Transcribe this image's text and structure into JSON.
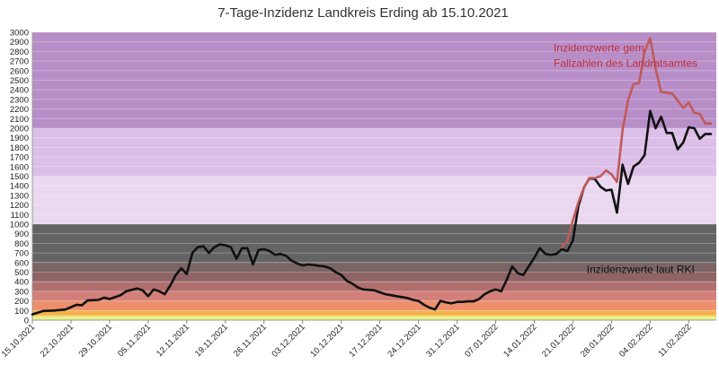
{
  "chart_data": {
    "type": "line",
    "title": "7-Tage-Inzidenz Landkreis Erding ab 15.10.2021",
    "xlabel": "",
    "ylabel": "",
    "ylim": [
      0,
      3000
    ],
    "ytick_step": 100,
    "y_ticks": [
      "0",
      "100",
      "200",
      "300",
      "400",
      "500",
      "600",
      "700",
      "800",
      "900",
      "1000",
      "1100",
      "1200",
      "1300",
      "1400",
      "1500",
      "1600",
      "1700",
      "1800",
      "1900",
      "2000",
      "2100",
      "2200",
      "2300",
      "2400",
      "2500",
      "2600",
      "2700",
      "2800",
      "2900",
      "3000"
    ],
    "x_range": [
      0,
      124
    ],
    "x_ticks": [
      {
        "label": "15.10.2021",
        "day": 0
      },
      {
        "label": "22.10.2021",
        "day": 7
      },
      {
        "label": "29.10.2021",
        "day": 14
      },
      {
        "label": "05.11.2021",
        "day": 21
      },
      {
        "label": "12.11.2021",
        "day": 28
      },
      {
        "label": "19.11.2021",
        "day": 35
      },
      {
        "label": "26.11.2021",
        "day": 42
      },
      {
        "label": "03.12.2021",
        "day": 49
      },
      {
        "label": "10.12.2021",
        "day": 56
      },
      {
        "label": "17.12.2021",
        "day": 63
      },
      {
        "label": "24.12.2021",
        "day": 70
      },
      {
        "label": "31.12.2021",
        "day": 77
      },
      {
        "label": "07.01.2022",
        "day": 84
      },
      {
        "label": "14.01.2022",
        "day": 91
      },
      {
        "label": "21.01.2022",
        "day": 98
      },
      {
        "label": "28.01.2022",
        "day": 105
      },
      {
        "label": "04.02.2022",
        "day": 112
      },
      {
        "label": "11.02.2022",
        "day": 119
      }
    ],
    "bands": [
      {
        "from": 0,
        "to": 35,
        "color": "#e6f58c"
      },
      {
        "from": 35,
        "to": 50,
        "color": "#f7d76a"
      },
      {
        "from": 50,
        "to": 100,
        "color": "#f4b24a"
      },
      {
        "from": 100,
        "to": 200,
        "color": "#ee8f6c"
      },
      {
        "from": 200,
        "to": 300,
        "color": "#d4807a"
      },
      {
        "from": 300,
        "to": 400,
        "color": "#b06f6e"
      },
      {
        "from": 400,
        "to": 500,
        "color": "#8f6464"
      },
      {
        "from": 500,
        "to": 600,
        "color": "#7a6464"
      },
      {
        "from": 600,
        "to": 1000,
        "color": "#646464"
      },
      {
        "from": 1000,
        "to": 1500,
        "color": "#ead7f0"
      },
      {
        "from": 1500,
        "to": 2000,
        "color": "#dcbfe8"
      },
      {
        "from": 2000,
        "to": 3000,
        "color": "#b88ec8"
      }
    ],
    "series": [
      {
        "name": "Inzidenzwerte laut RKI",
        "color": "#111111",
        "points": [
          [
            0,
            60
          ],
          [
            2,
            95
          ],
          [
            4,
            100
          ],
          [
            6,
            110
          ],
          [
            8,
            160
          ],
          [
            9,
            155
          ],
          [
            10,
            205
          ],
          [
            12,
            210
          ],
          [
            13,
            235
          ],
          [
            14,
            220
          ],
          [
            16,
            260
          ],
          [
            17,
            300
          ],
          [
            19,
            330
          ],
          [
            20,
            310
          ],
          [
            21,
            250
          ],
          [
            22,
            320
          ],
          [
            23,
            300
          ],
          [
            24,
            270
          ],
          [
            25,
            360
          ],
          [
            26,
            470
          ],
          [
            27,
            540
          ],
          [
            28,
            480
          ],
          [
            29,
            700
          ],
          [
            30,
            760
          ],
          [
            31,
            770
          ],
          [
            32,
            700
          ],
          [
            33,
            760
          ],
          [
            34,
            790
          ],
          [
            35,
            780
          ],
          [
            36,
            760
          ],
          [
            37,
            640
          ],
          [
            38,
            750
          ],
          [
            39,
            750
          ],
          [
            40,
            580
          ],
          [
            41,
            730
          ],
          [
            42,
            740
          ],
          [
            43,
            720
          ],
          [
            44,
            680
          ],
          [
            45,
            690
          ],
          [
            46,
            670
          ],
          [
            47,
            620
          ],
          [
            48,
            590
          ],
          [
            49,
            570
          ],
          [
            50,
            580
          ],
          [
            51,
            575
          ],
          [
            52,
            565
          ],
          [
            53,
            560
          ],
          [
            54,
            540
          ],
          [
            55,
            500
          ],
          [
            56,
            470
          ],
          [
            57,
            410
          ],
          [
            58,
            380
          ],
          [
            59,
            340
          ],
          [
            60,
            320
          ],
          [
            61,
            315
          ],
          [
            62,
            310
          ],
          [
            63,
            290
          ],
          [
            64,
            270
          ],
          [
            65,
            260
          ],
          [
            66,
            250
          ],
          [
            67,
            240
          ],
          [
            68,
            230
          ],
          [
            69,
            210
          ],
          [
            70,
            200
          ],
          [
            71,
            160
          ],
          [
            72,
            130
          ],
          [
            73,
            110
          ],
          [
            74,
            200
          ],
          [
            75,
            185
          ],
          [
            76,
            175
          ],
          [
            77,
            190
          ],
          [
            78,
            190
          ],
          [
            79,
            195
          ],
          [
            80,
            195
          ],
          [
            81,
            220
          ],
          [
            82,
            270
          ],
          [
            83,
            300
          ],
          [
            84,
            320
          ],
          [
            85,
            300
          ],
          [
            86,
            420
          ],
          [
            87,
            560
          ],
          [
            88,
            490
          ],
          [
            89,
            470
          ],
          [
            90,
            560
          ],
          [
            91,
            650
          ],
          [
            92,
            750
          ],
          [
            93,
            690
          ],
          [
            94,
            680
          ],
          [
            95,
            690
          ],
          [
            96,
            740
          ],
          [
            97,
            720
          ],
          [
            98,
            830
          ],
          [
            99,
            1190
          ],
          [
            100,
            1380
          ],
          [
            101,
            1480
          ],
          [
            102,
            1470
          ],
          [
            103,
            1390
          ],
          [
            104,
            1350
          ],
          [
            105,
            1360
          ],
          [
            106,
            1120
          ],
          [
            107,
            1620
          ],
          [
            108,
            1420
          ],
          [
            109,
            1600
          ],
          [
            110,
            1640
          ],
          [
            111,
            1720
          ],
          [
            112,
            2180
          ],
          [
            113,
            2000
          ],
          [
            114,
            2120
          ],
          [
            115,
            1950
          ],
          [
            116,
            1950
          ],
          [
            117,
            1780
          ],
          [
            118,
            1850
          ],
          [
            119,
            2010
          ],
          [
            120,
            2000
          ],
          [
            121,
            1890
          ],
          [
            122,
            1940
          ],
          [
            123,
            1940
          ]
        ]
      },
      {
        "name": "Inzidenzwerte gem. Fallzahlen des Landratsamtes",
        "color": "#c05a5a",
        "points": [
          [
            96,
            760
          ],
          [
            97,
            830
          ],
          [
            98,
            1040
          ],
          [
            99,
            1230
          ],
          [
            100,
            1380
          ],
          [
            101,
            1480
          ],
          [
            102,
            1480
          ],
          [
            103,
            1500
          ],
          [
            104,
            1560
          ],
          [
            105,
            1520
          ],
          [
            106,
            1440
          ],
          [
            107,
            1980
          ],
          [
            108,
            2290
          ],
          [
            109,
            2460
          ],
          [
            110,
            2470
          ],
          [
            111,
            2800
          ],
          [
            112,
            2940
          ],
          [
            113,
            2620
          ],
          [
            114,
            2380
          ],
          [
            115,
            2370
          ],
          [
            116,
            2360
          ],
          [
            117,
            2290
          ],
          [
            118,
            2210
          ],
          [
            119,
            2270
          ],
          [
            120,
            2160
          ],
          [
            121,
            2150
          ],
          [
            122,
            2050
          ],
          [
            123,
            2050
          ]
        ]
      }
    ],
    "annotations": [
      {
        "lines": [
          "Inzidenzwerte gem.",
          "Fallzahlen des Landratsamtes"
        ],
        "color": "#c0303a",
        "day": 94.5,
        "value": 2800
      },
      {
        "lines": [
          "Inzidenzwerte laut RKI"
        ],
        "color": "#111111",
        "day": 100.5,
        "value": 490
      }
    ],
    "grid": true
  }
}
